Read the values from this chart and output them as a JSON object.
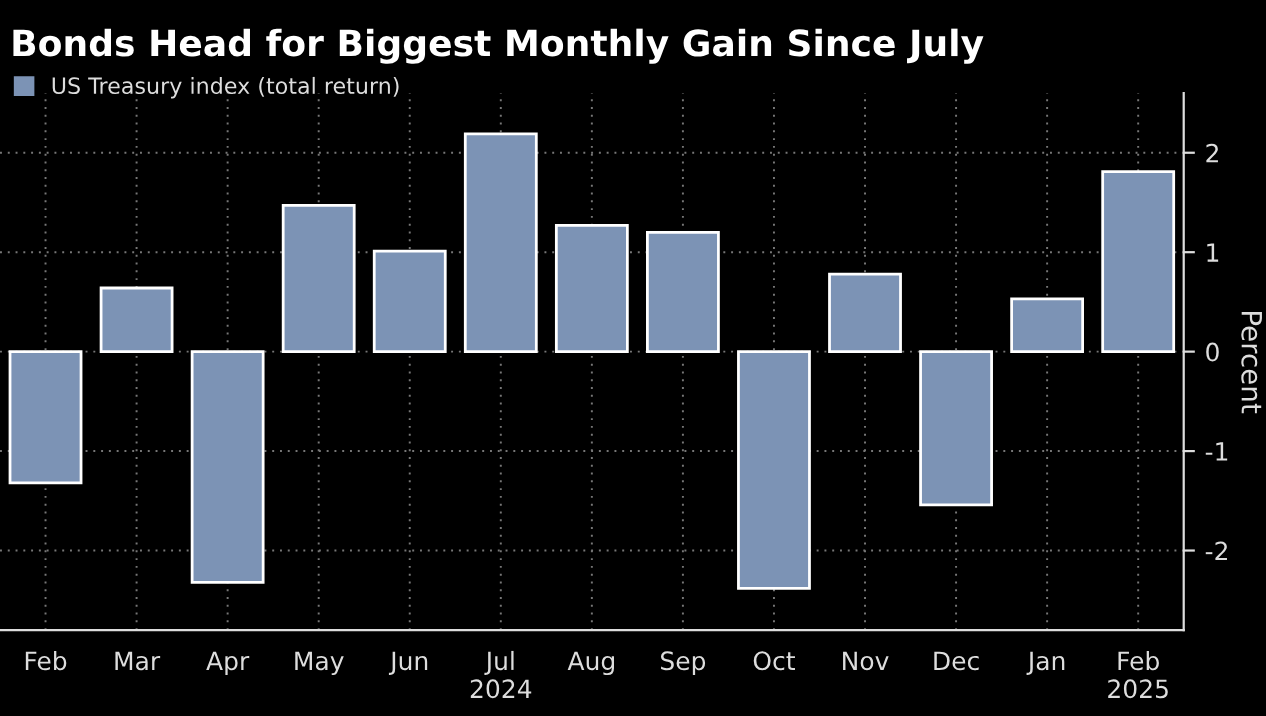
{
  "chart_data": {
    "type": "bar",
    "title": "Bonds Head for Biggest Monthly Gain Since July",
    "categories": [
      "Feb",
      "Mar",
      "Apr",
      "May",
      "Jun",
      "Jul\n2024",
      "Aug",
      "Sep",
      "Oct",
      "Nov",
      "Dec",
      "Jan",
      "Feb\n2025"
    ],
    "series": [
      {
        "name": "US Treasury index (total return)",
        "color": "#7c93b5",
        "values": [
          -1.32,
          0.64,
          -2.32,
          1.47,
          1.01,
          2.19,
          1.27,
          1.2,
          -2.38,
          0.78,
          -1.54,
          0.53,
          1.81
        ]
      }
    ],
    "ylabel": "Percent",
    "ylim": [
      -2.8,
      2.6
    ],
    "yticks": [
      {
        "value": -2,
        "label": "-2"
      },
      {
        "value": -1,
        "label": "-1"
      },
      0,
      1,
      2
    ],
    "grid": true,
    "legend": "top left"
  }
}
